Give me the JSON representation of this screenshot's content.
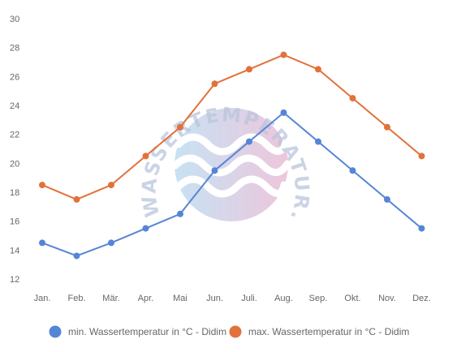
{
  "watermark": {
    "text": "WASSERTEMPERATUR.ORG",
    "colors": [
      "#b9dcf2",
      "#eab8d3"
    ]
  },
  "chart_data": {
    "type": "line",
    "categories": [
      "Jan.",
      "Feb.",
      "Mär.",
      "Apr.",
      "Mai",
      "Jun.",
      "Juli.",
      "Aug.",
      "Sep.",
      "Okt.",
      "Nov.",
      "Dez."
    ],
    "ylim": [
      12,
      30
    ],
    "yticks": [
      12,
      14,
      16,
      18,
      20,
      22,
      24,
      26,
      28,
      30
    ],
    "grid": false,
    "legend_position": "bottom",
    "series": [
      {
        "name": "min. Wassertemperatur in °C - Didim",
        "color": "#5585d6",
        "values": [
          14.5,
          13.6,
          14.5,
          15.5,
          16.5,
          19.5,
          21.5,
          23.5,
          21.5,
          19.5,
          17.5,
          15.5
        ]
      },
      {
        "name": "max. Wassertemperatur in °C - Didim",
        "color": "#e2713a",
        "values": [
          18.5,
          17.5,
          18.5,
          20.5,
          22.5,
          25.5,
          26.5,
          27.5,
          26.5,
          24.5,
          22.5,
          20.5
        ]
      }
    ]
  }
}
